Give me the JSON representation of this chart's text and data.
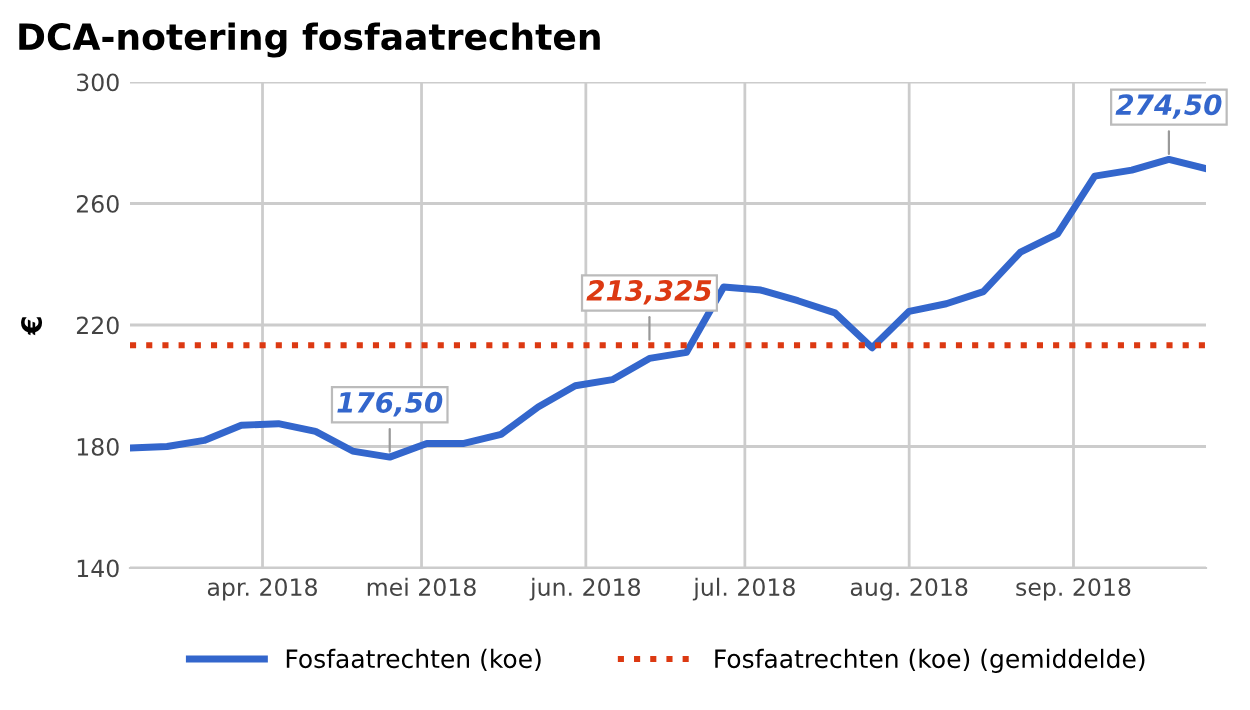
{
  "chart_data": {
    "type": "line",
    "title": "DCA-notering fosfaatrechten",
    "ylabel": "€",
    "x": [
      "2018-03-07",
      "2018-03-14",
      "2018-03-21",
      "2018-03-28",
      "2018-04-04",
      "2018-04-11",
      "2018-04-18",
      "2018-04-25",
      "2018-05-02",
      "2018-05-09",
      "2018-05-16",
      "2018-05-23",
      "2018-05-30",
      "2018-06-06",
      "2018-06-13",
      "2018-06-20",
      "2018-06-27",
      "2018-07-04",
      "2018-07-11",
      "2018-07-18",
      "2018-07-25",
      "2018-08-01",
      "2018-08-08",
      "2018-08-15",
      "2018-08-22",
      "2018-08-29",
      "2018-09-05",
      "2018-09-12",
      "2018-09-19",
      "2018-09-26"
    ],
    "series": [
      {
        "name": "Fosfaatrechten (koe)",
        "color": "#3366cc",
        "line_style": "solid",
        "values": [
          179.5,
          180,
          182,
          187,
          187.5,
          185,
          178.5,
          176.5,
          181,
          181,
          184,
          193,
          200,
          202,
          209,
          211,
          232.5,
          231.5,
          228,
          224,
          212.5,
          224.5,
          227,
          231,
          244,
          250,
          269,
          271,
          274.5,
          271.5
        ],
        "value_labels": [
          null,
          null,
          null,
          null,
          null,
          null,
          null,
          "176,50",
          null,
          null,
          null,
          null,
          null,
          null,
          null,
          null,
          null,
          null,
          null,
          null,
          null,
          null,
          null,
          null,
          null,
          null,
          null,
          null,
          "274,50",
          null
        ]
      },
      {
        "name": "Fosfaatrechten (koe) (gemiddelde)",
        "color": "#dc3912",
        "line_style": "dotted",
        "values": [
          213.325,
          213.325,
          213.325,
          213.325,
          213.325,
          213.325,
          213.325,
          213.325,
          213.325,
          213.325,
          213.325,
          213.325,
          213.325,
          213.325,
          213.325,
          213.325,
          213.325,
          213.325,
          213.325,
          213.325,
          213.325,
          213.325,
          213.325,
          213.325,
          213.325,
          213.325,
          213.325,
          213.325,
          213.325,
          213.325
        ]
      }
    ],
    "annotations": [
      {
        "text": "213,325",
        "x": "2018-06-13",
        "y": 213.325
      }
    ],
    "xlim": [
      "2018-03-07",
      "2018-09-26"
    ],
    "xticks": [
      {
        "value": "2018-04-01",
        "label": "apr. 2018"
      },
      {
        "value": "2018-05-01",
        "label": "mei 2018"
      },
      {
        "value": "2018-06-01",
        "label": "jun. 2018"
      },
      {
        "value": "2018-07-01",
        "label": "jul. 2018"
      },
      {
        "value": "2018-08-01",
        "label": "aug. 2018"
      },
      {
        "value": "2018-09-01",
        "label": "sep. 2018"
      }
    ],
    "ylim": [
      140,
      300
    ],
    "yticks": [
      140,
      180,
      220,
      260,
      300
    ],
    "grid": true,
    "legend": "bottom",
    "marker": "none"
  }
}
